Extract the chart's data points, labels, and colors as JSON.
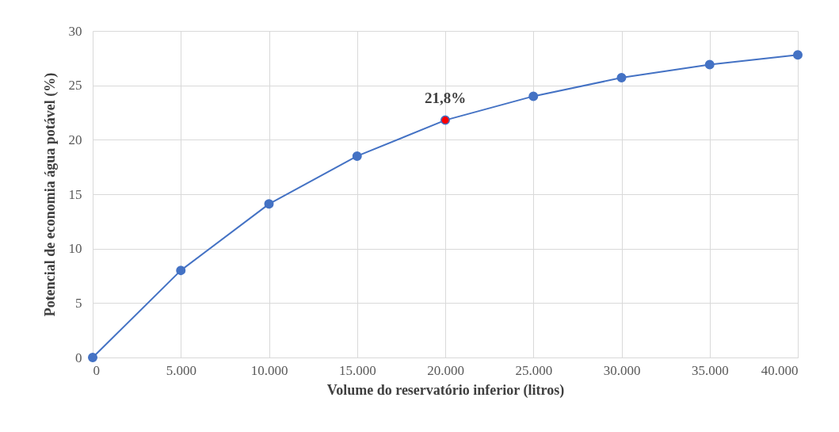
{
  "chart_data": {
    "type": "line",
    "xlabel": "Volume do reservatório inferior  (litros)",
    "ylabel": "Potencial de economia água potável (%)",
    "x": [
      0,
      5000,
      10000,
      15000,
      20000,
      25000,
      30000,
      35000,
      40000
    ],
    "series": [
      {
        "color": "#4472c4",
        "colors": [
          "#4472c4",
          "#4472c4",
          "#4472c4",
          "#4472c4",
          "#ff0000",
          "#4472c4",
          "#4472c4",
          "#4472c4",
          "#4472c4"
        ],
        "values": [
          0,
          8.0,
          14.1,
          18.5,
          21.8,
          24.0,
          25.7,
          26.9,
          27.8
        ]
      }
    ],
    "xlim": [
      0,
      40000
    ],
    "xticks": [
      0,
      {
        "value": 5000,
        "label": "5.000"
      },
      {
        "value": 10000,
        "label": "10.000"
      },
      {
        "value": 15000,
        "label": "15.000"
      },
      {
        "value": 20000,
        "label": "20.000"
      },
      {
        "value": 25000,
        "label": "25.000"
      },
      {
        "value": 30000,
        "label": "30.000"
      },
      {
        "value": 35000,
        "label": "35.000"
      },
      {
        "value": 40000,
        "label": "40.000"
      }
    ],
    "ylim": [
      0,
      30
    ],
    "yticks": [
      0,
      5,
      10,
      15,
      20,
      25,
      30
    ],
    "grid": true,
    "marker": "circle",
    "line_style": "solid",
    "annotations": [
      {
        "text": "21,8%",
        "x": 20000,
        "y": 21.8
      }
    ]
  }
}
